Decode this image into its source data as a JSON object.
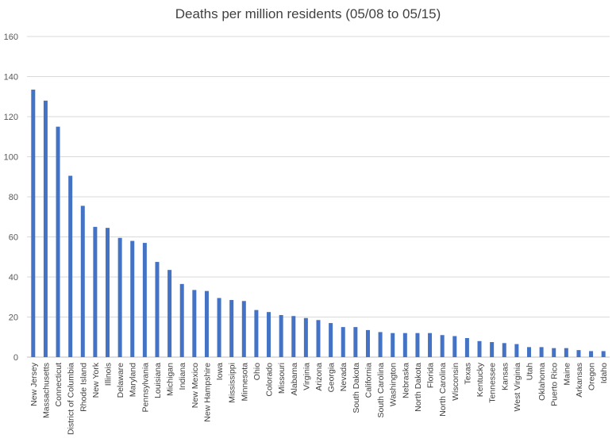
{
  "chart_data": {
    "type": "bar",
    "title": "Deaths per million residents (05/08 to 05/15)",
    "xlabel": "",
    "ylabel": "",
    "ylim": [
      0,
      160
    ],
    "yticks": [
      0,
      20,
      40,
      60,
      80,
      100,
      120,
      140,
      160
    ],
    "grid": true,
    "legend": "none",
    "bar_color": "#4472c4",
    "categories": [
      "New Jersey",
      "Massachusetts",
      "Connecticut",
      "District of Columbia",
      "Rhode Island",
      "New York",
      "Illinois",
      "Delaware",
      "Maryland",
      "Pennsylvania",
      "Louisiana",
      "Michigan",
      "Indiana",
      "New Mexico",
      "New Hampshire",
      "Iowa",
      "Mississippi",
      "Minnesota",
      "Ohio",
      "Colorado",
      "Missouri",
      "Alabama",
      "Virginia",
      "Arizona",
      "Georgia",
      "Nevada",
      "South Dakota",
      "California",
      "South Carolina",
      "Washington",
      "Nebraska",
      "North Dakota",
      "Florida",
      "North Carolina",
      "Wisconsin",
      "Texas",
      "Kentucky",
      "Tennessee",
      "Kansas",
      "West Virginia",
      "Utah",
      "Oklahoma",
      "Puerto Rico",
      "Maine",
      "Arkansas",
      "Oregon",
      "Idaho"
    ],
    "values": [
      133.5,
      128,
      115,
      90.5,
      75.5,
      65,
      64.5,
      59.5,
      58,
      57,
      47.5,
      43.5,
      36.5,
      33.5,
      33,
      29.5,
      28.5,
      28,
      23.5,
      22.5,
      21,
      20.5,
      19.5,
      18.5,
      17,
      15,
      15,
      13.5,
      12.5,
      12,
      12,
      12,
      12,
      11,
      10.5,
      9.5,
      8,
      7.5,
      7,
      6.5,
      5,
      5,
      4.5,
      4.5,
      3.5,
      3,
      3
    ]
  }
}
